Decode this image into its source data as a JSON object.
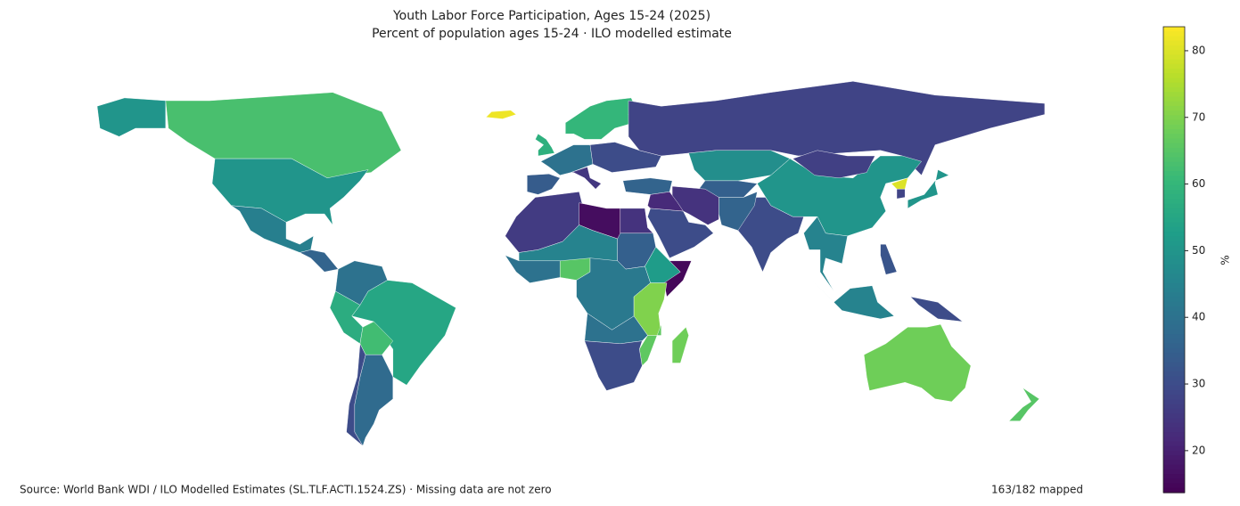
{
  "chart_data": {
    "type": "choropleth",
    "title": "Youth Labor Force Participation, Ages 15-24 (2025)",
    "subtitle": "Percent of population ages 15-24 · ILO modelled estimate",
    "values": [
      63,
      50,
      44,
      36,
      40,
      55,
      57,
      62,
      38,
      30,
      82,
      60,
      58,
      40,
      34,
      25,
      30,
      28,
      36,
      48,
      35,
      24,
      30,
      50,
      27,
      30,
      36,
      45,
      50,
      80,
      28,
      45,
      30,
      32,
      68,
      65,
      26,
      16,
      24,
      45,
      65,
      40,
      35,
      52,
      15,
      42,
      70,
      40,
      66,
      30,
      68,
      22
    ],
    "colormap": "viridis",
    "clim": [
      13.7,
      83.6
    ],
    "cticks": [
      20,
      30,
      40,
      50,
      60,
      70,
      80
    ],
    "colorbar_label": "%",
    "source": "Source: World Bank WDI / ILO Modelled Estimates (SL.TLF.ACTI.1524.ZS) · Missing data are not zero",
    "note": "163/182 mapped"
  }
}
